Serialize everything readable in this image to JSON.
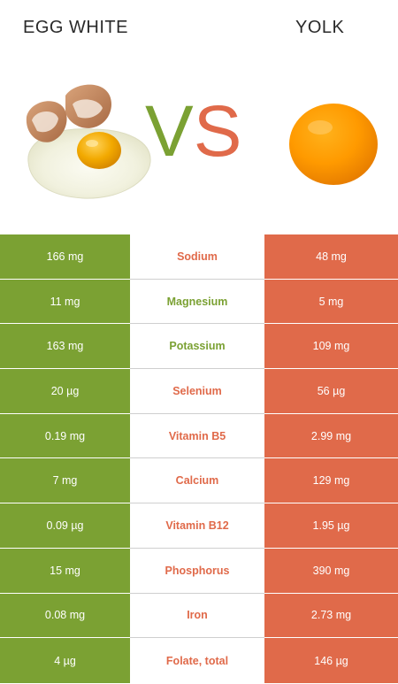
{
  "header": {
    "left_title": "EGG WHITE",
    "right_title": "YOLK",
    "vs_v": "V",
    "vs_s": "S"
  },
  "colors": {
    "green": "#7ba133",
    "red": "#e06a4a"
  },
  "rows": [
    {
      "left": "166 mg",
      "nutrient": "Sodium",
      "right": "48 mg",
      "winner": "right"
    },
    {
      "left": "11 mg",
      "nutrient": "Magnesium",
      "right": "5 mg",
      "winner": "left"
    },
    {
      "left": "163 mg",
      "nutrient": "Potassium",
      "right": "109 mg",
      "winner": "left"
    },
    {
      "left": "20 µg",
      "nutrient": "Selenium",
      "right": "56 µg",
      "winner": "right"
    },
    {
      "left": "0.19 mg",
      "nutrient": "Vitamin B5",
      "right": "2.99 mg",
      "winner": "right"
    },
    {
      "left": "7 mg",
      "nutrient": "Calcium",
      "right": "129 mg",
      "winner": "right"
    },
    {
      "left": "0.09 µg",
      "nutrient": "Vitamin B12",
      "right": "1.95 µg",
      "winner": "right"
    },
    {
      "left": "15 mg",
      "nutrient": "Phosphorus",
      "right": "390 mg",
      "winner": "right"
    },
    {
      "left": "0.08 mg",
      "nutrient": "Iron",
      "right": "2.73 mg",
      "winner": "right"
    },
    {
      "left": "4 µg",
      "nutrient": "Folate, total",
      "right": "146 µg",
      "winner": "right"
    }
  ]
}
